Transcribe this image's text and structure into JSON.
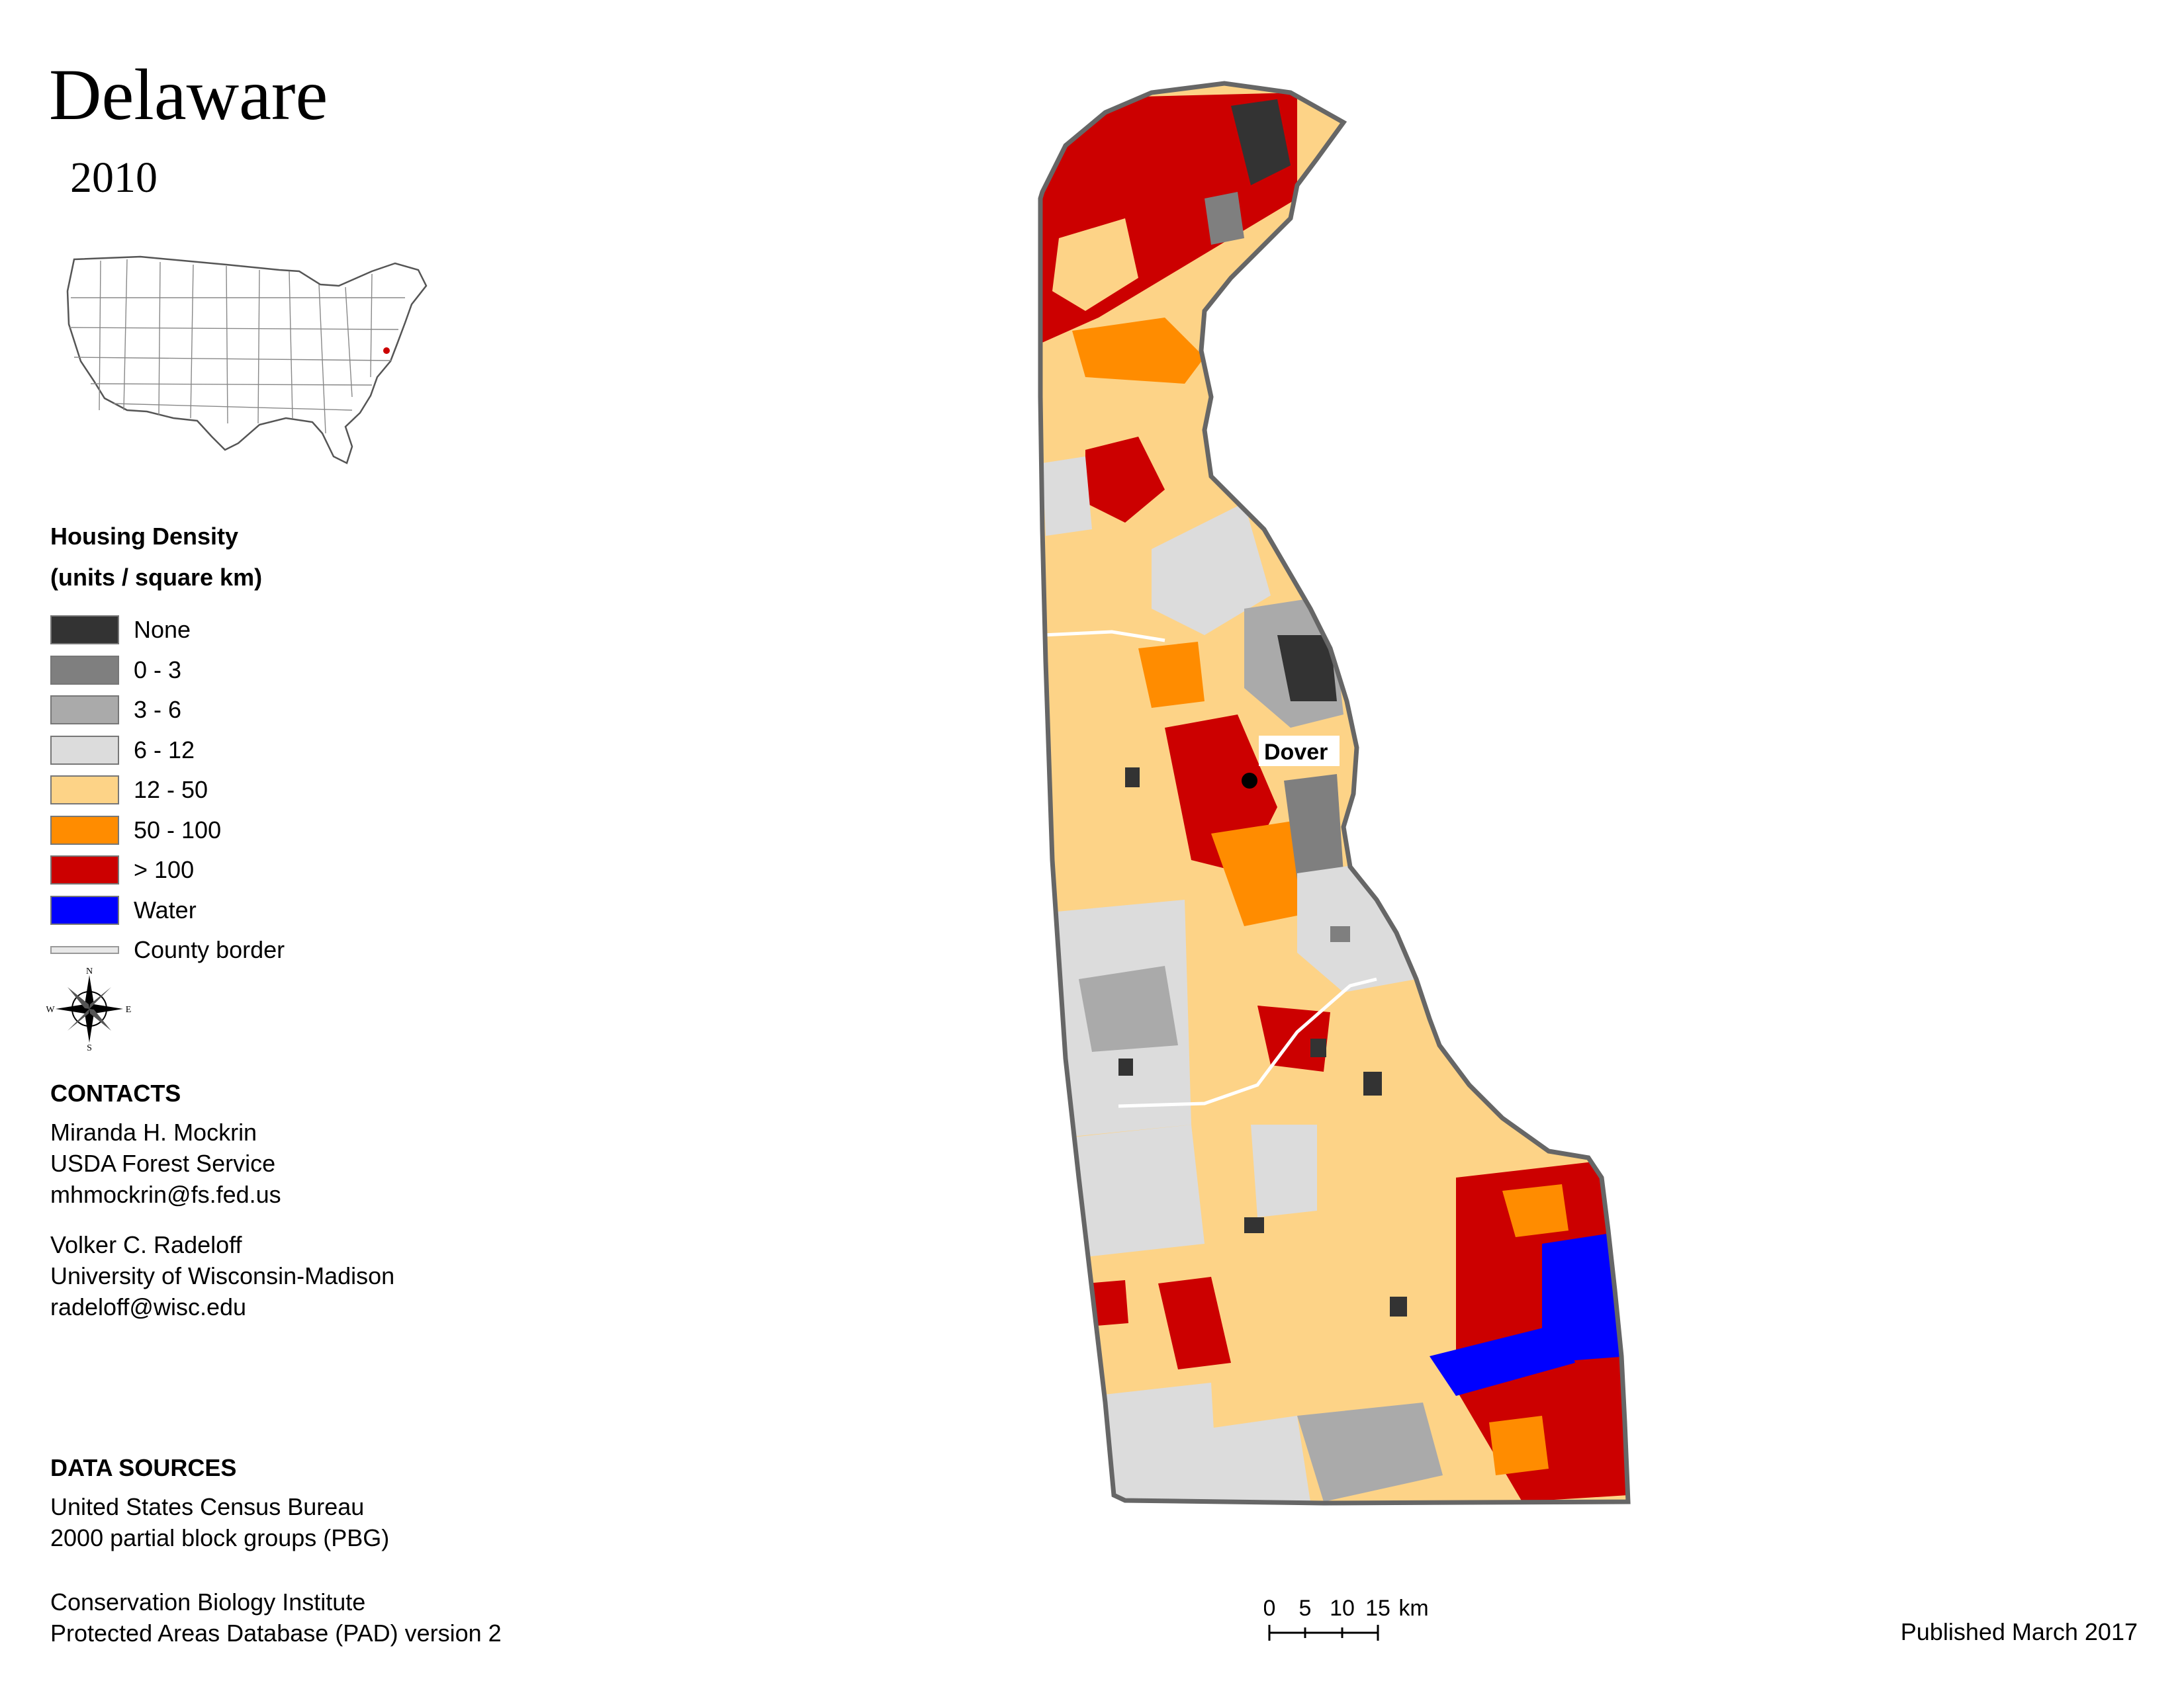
{
  "title": "Delaware",
  "year": "2010",
  "legend": {
    "title_line1": "Housing Density",
    "title_line2": "(units / square km)",
    "items": [
      {
        "label": "None",
        "color": "#333333"
      },
      {
        "label": "0 - 3",
        "color": "#7f7f7f"
      },
      {
        "label": "3 - 6",
        "color": "#aaaaaa"
      },
      {
        "label": "6 - 12",
        "color": "#dcdcdc"
      },
      {
        "label": "12 - 50",
        "color": "#fdd387"
      },
      {
        "label": "50 - 100",
        "color": "#ff8c00"
      },
      {
        "label": "> 100",
        "color": "#cc0000"
      },
      {
        "label": "Water",
        "color": "#0000ff"
      },
      {
        "label": "County border",
        "color": "#e8e8e8"
      }
    ]
  },
  "compass": {
    "n": "N",
    "s": "S",
    "e": "E",
    "w": "W"
  },
  "contacts": {
    "heading": "CONTACTS",
    "person1": {
      "name": "Miranda H. Mockrin",
      "org": "USDA Forest Service",
      "email": "mhmockrin@fs.fed.us"
    },
    "person2": {
      "name": "Volker C. Radeloff",
      "org": "University of Wisconsin-Madison",
      "email": "radeloff@wisc.edu"
    }
  },
  "data_sources": {
    "heading": "DATA SOURCES",
    "source1_line1": "United States Census Bureau",
    "source1_line2": "2000 partial block groups (PBG)",
    "source2_line1": "Conservation Biology Institute",
    "source2_line2": "Protected Areas Database (PAD) version 2"
  },
  "scale": {
    "ticks": [
      "0",
      "5",
      "10",
      "15"
    ],
    "unit": "km"
  },
  "published": "Published March 2017",
  "map": {
    "city_label": "Dover"
  }
}
